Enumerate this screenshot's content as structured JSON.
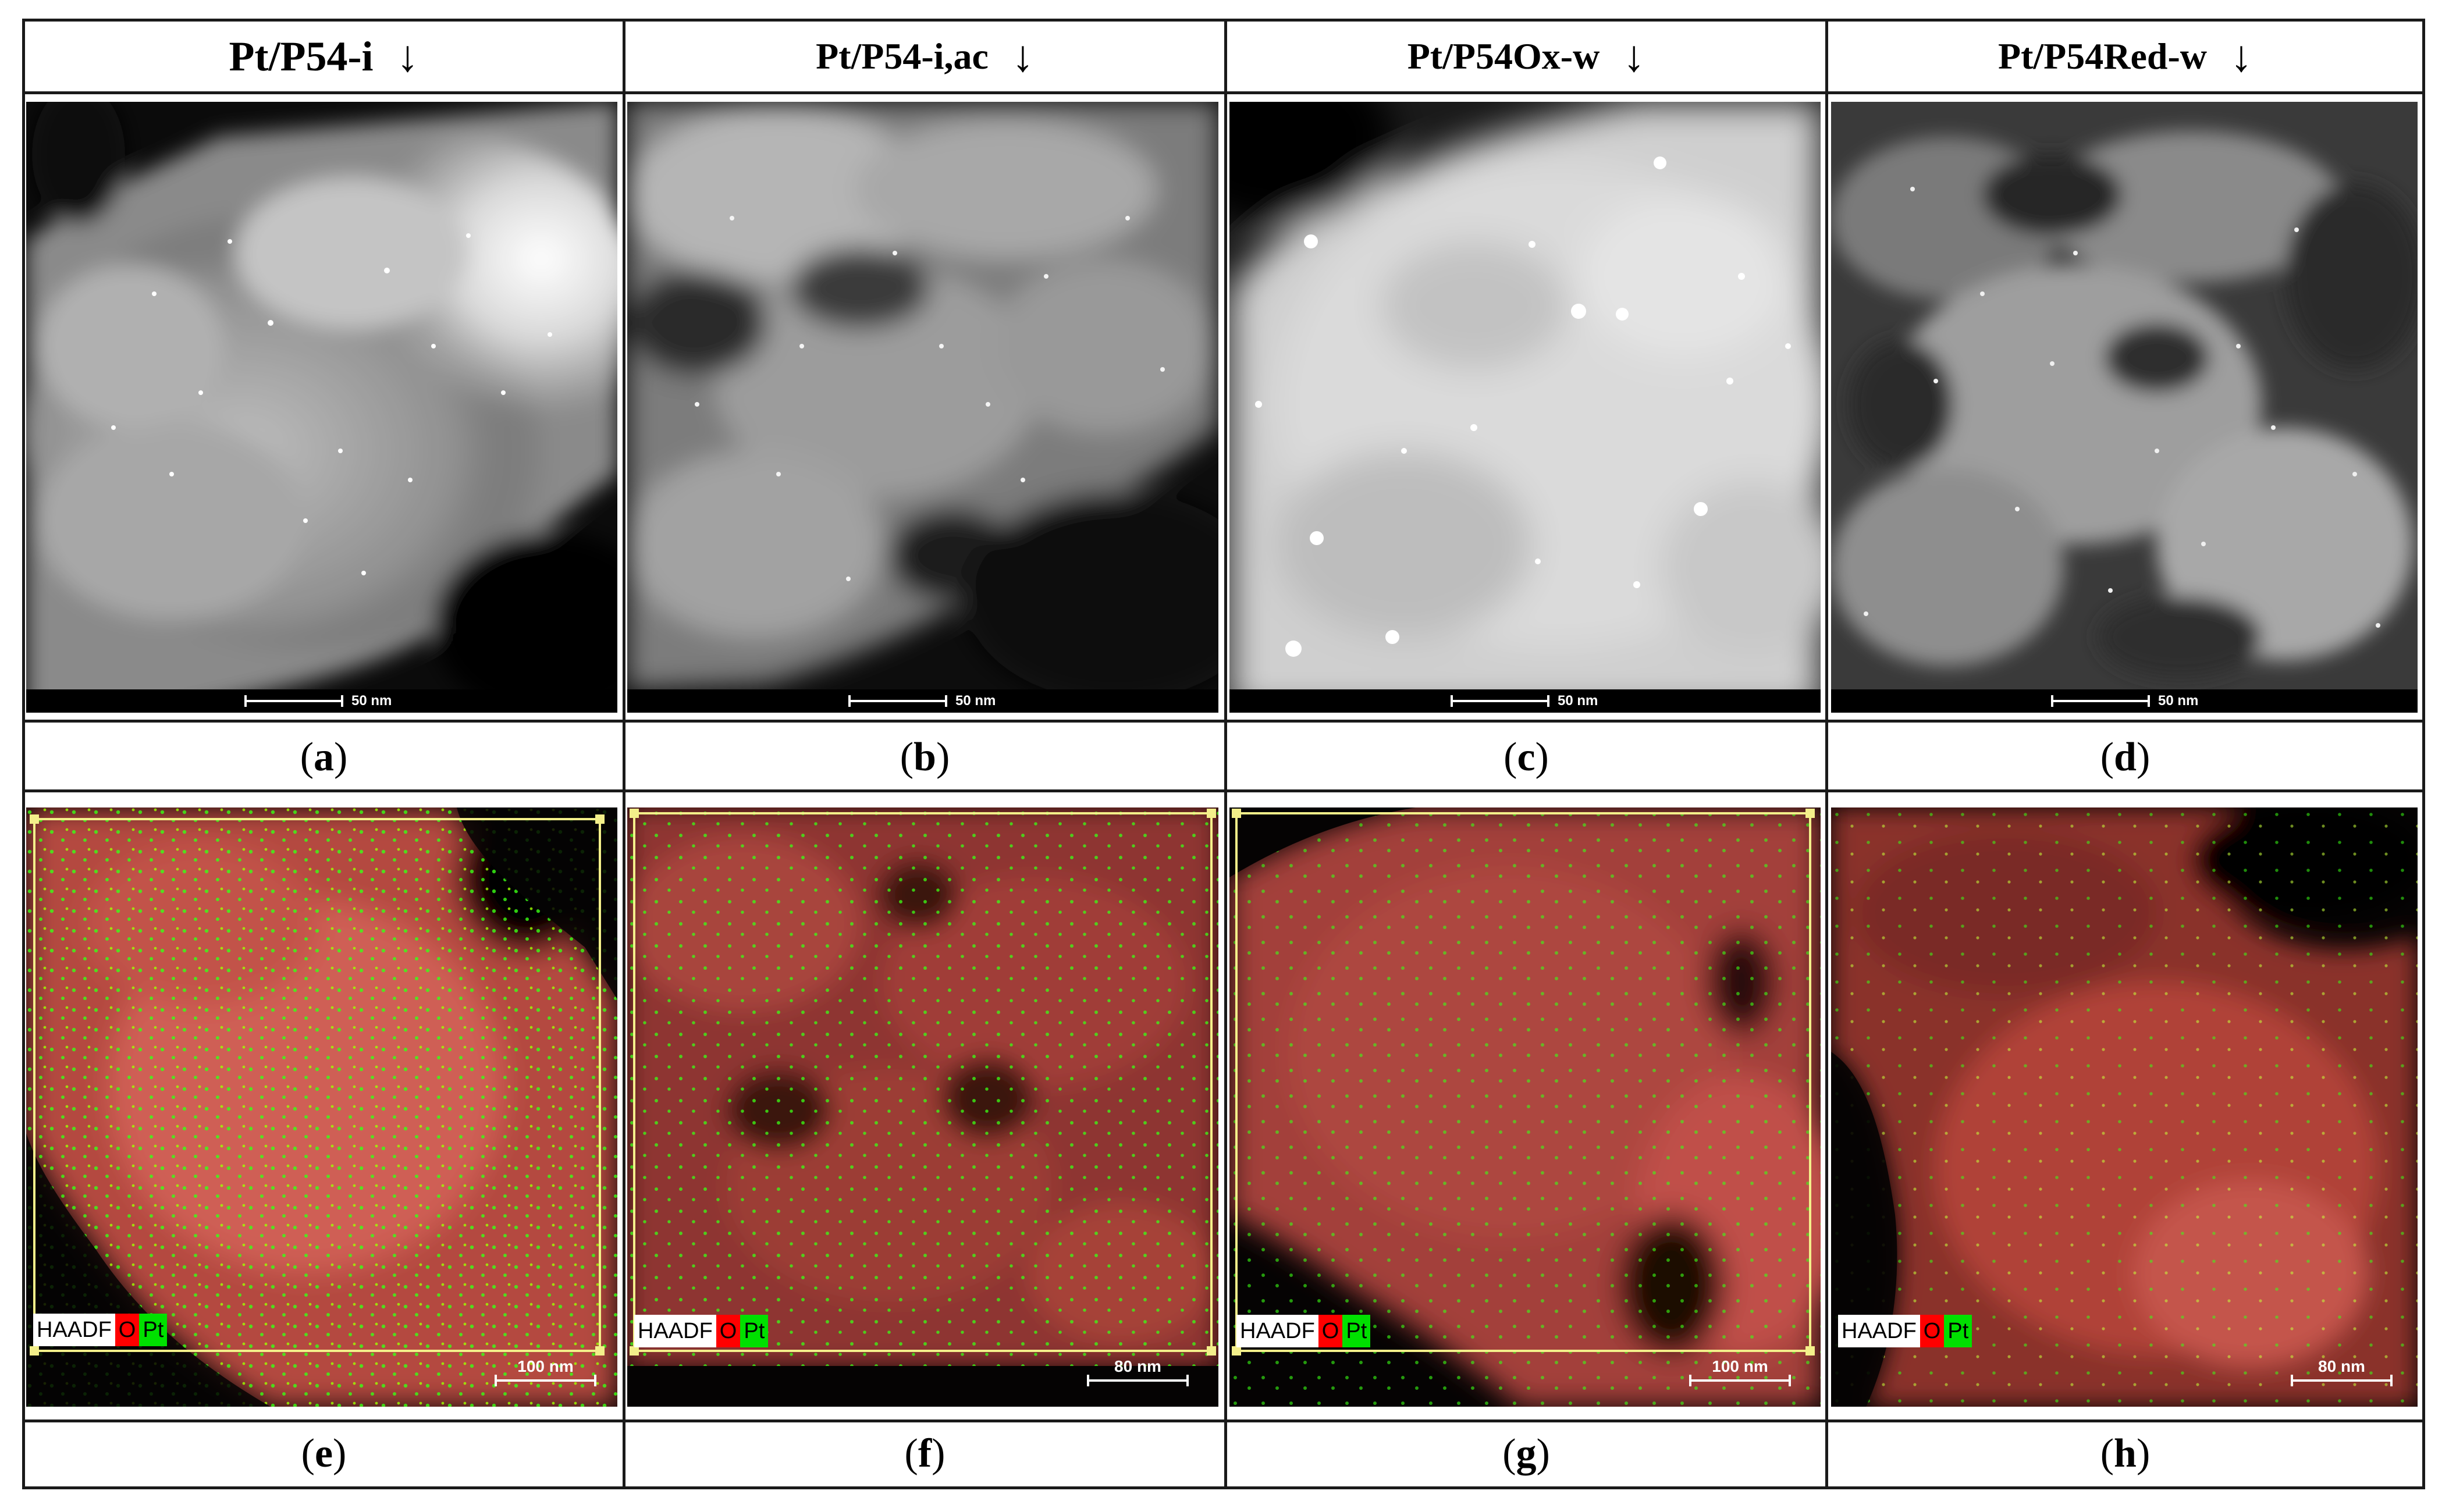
{
  "headers": [
    {
      "label": "Pt/P54-i",
      "arrow": "↓"
    },
    {
      "label": "Pt/P54-i,ac",
      "arrow": "↓"
    },
    {
      "label": "Pt/P54Ox-w",
      "arrow": "↓"
    },
    {
      "label": "Pt/P54Red-w",
      "arrow": "↓"
    }
  ],
  "top_panels": [
    {
      "caption": "a",
      "scale": "50 nm"
    },
    {
      "caption": "b",
      "scale": "50 nm"
    },
    {
      "caption": "c",
      "scale": "50 nm"
    },
    {
      "caption": "d",
      "scale": "50 nm"
    }
  ],
  "bottom_panels": [
    {
      "caption": "e",
      "scale": "100 nm",
      "legend": [
        "HAADF",
        "O",
        "Pt"
      ]
    },
    {
      "caption": "f",
      "scale": "80 nm",
      "legend": [
        "HAADF",
        "O",
        "Pt"
      ]
    },
    {
      "caption": "g",
      "scale": "100 nm",
      "legend": [
        "HAADF",
        "O",
        "Pt"
      ]
    },
    {
      "caption": "h",
      "scale": "80 nm",
      "legend": [
        "HAADF",
        "O",
        "Pt"
      ]
    }
  ],
  "colors": {
    "oxygen_map": "#d9534a",
    "platinum_map": "#39ff14",
    "roi_box": "#f3ef8a"
  }
}
